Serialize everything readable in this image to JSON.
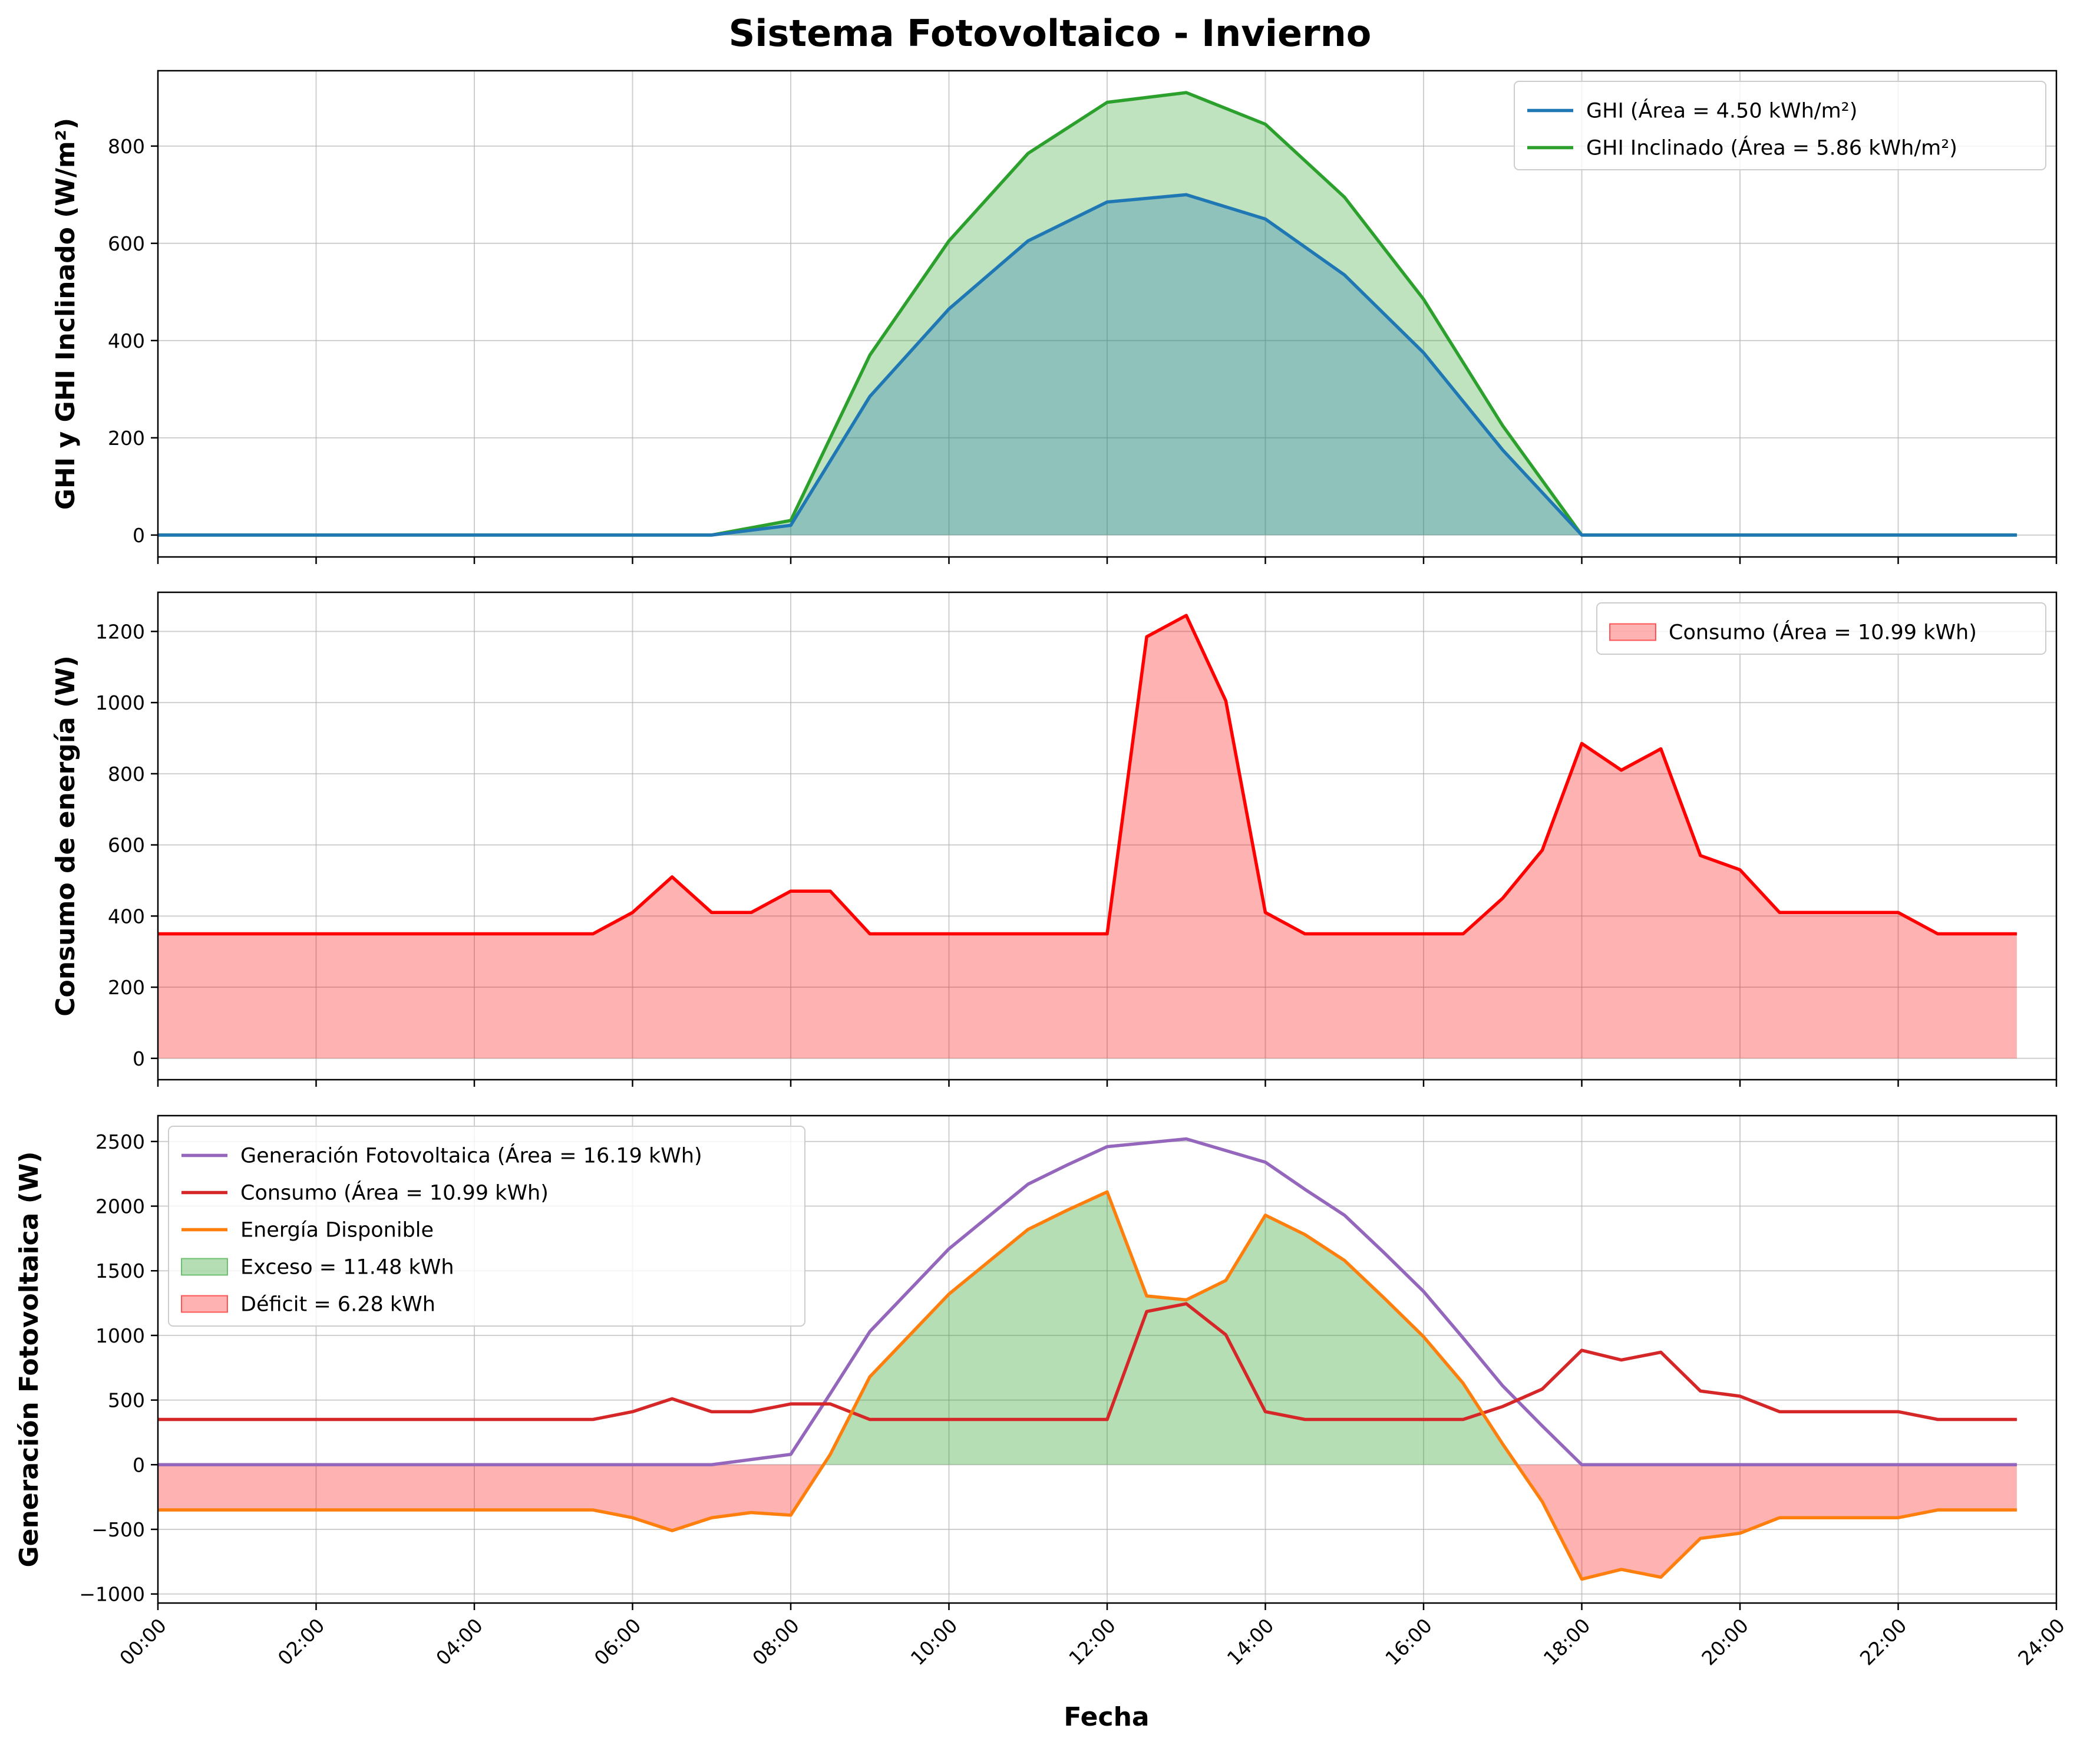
{
  "figure": {
    "title": "Sistema Fotovoltaico - Invierno",
    "xlabel": "Fecha",
    "xticks": [
      "00:00",
      "02:00",
      "04:00",
      "06:00",
      "08:00",
      "10:00",
      "12:00",
      "14:00",
      "16:00",
      "18:00",
      "20:00",
      "22:00",
      "24:00"
    ]
  },
  "chart_data": [
    {
      "type": "area",
      "ylabel": "GHI y GHI Inclinado (W/m²)",
      "xlim": [
        0,
        24
      ],
      "ylim": [
        -45,
        955
      ],
      "yticks": [
        0,
        200,
        400,
        600,
        800
      ],
      "grid": true,
      "legend_position": "top-right",
      "x": [
        0,
        1,
        2,
        3,
        4,
        5,
        6,
        7,
        8,
        9,
        10,
        11,
        12,
        13,
        14,
        15,
        16,
        17,
        18,
        19,
        20,
        21,
        22,
        23,
        23.5
      ],
      "series": [
        {
          "name": "GHI Inclinado (Área = 5.86 kWh/m²)",
          "color": "#2ca02c",
          "fill": "#2ca02c",
          "fill_opacity": 0.3,
          "values": [
            0,
            0,
            0,
            0,
            0,
            0,
            0,
            0,
            30,
            370,
            605,
            785,
            890,
            910,
            845,
            695,
            485,
            225,
            0,
            0,
            0,
            0,
            0,
            0,
            0
          ]
        },
        {
          "name": "GHI (Área = 4.50 kWh/m²)",
          "color": "#1f77b4",
          "fill": "#1f77b4",
          "fill_opacity": 0.3,
          "values": [
            0,
            0,
            0,
            0,
            0,
            0,
            0,
            0,
            20,
            285,
            465,
            605,
            685,
            700,
            650,
            535,
            375,
            175,
            0,
            0,
            0,
            0,
            0,
            0,
            0
          ]
        }
      ],
      "legend": [
        {
          "label": "GHI (Área = 4.50 kWh/m²)",
          "color": "#1f77b4",
          "kind": "line"
        },
        {
          "label": "GHI Inclinado (Área = 5.86 kWh/m²)",
          "color": "#2ca02c",
          "kind": "line"
        }
      ]
    },
    {
      "type": "area",
      "ylabel": "Consumo de energía (W)",
      "xlim": [
        0,
        24
      ],
      "ylim": [
        -60,
        1310
      ],
      "yticks": [
        0,
        200,
        400,
        600,
        800,
        1000,
        1200
      ],
      "grid": true,
      "legend_position": "top-right",
      "x": [
        0,
        0.5,
        1,
        1.5,
        2,
        2.5,
        3,
        3.5,
        4,
        4.5,
        5,
        5.5,
        6,
        6.5,
        7,
        7.5,
        8,
        8.5,
        9,
        9.5,
        10,
        10.5,
        11,
        11.5,
        12,
        12.5,
        13,
        13.5,
        14,
        14.5,
        15,
        15.5,
        16,
        16.5,
        17,
        17.5,
        18,
        18.5,
        19,
        19.5,
        20,
        20.5,
        21,
        21.5,
        22,
        22.5,
        23,
        23.5
      ],
      "series": [
        {
          "name": "Consumo (Área = 10.99 kWh)",
          "color": "#ff0000",
          "fill": "#ff0000",
          "fill_opacity": 0.3,
          "values": [
            350,
            350,
            350,
            350,
            350,
            350,
            350,
            350,
            350,
            350,
            350,
            350,
            410,
            510,
            410,
            410,
            470,
            470,
            350,
            350,
            350,
            350,
            350,
            350,
            350,
            1185,
            1245,
            1005,
            410,
            350,
            350,
            350,
            350,
            350,
            450,
            585,
            885,
            810,
            870,
            570,
            530,
            410,
            410,
            410,
            410,
            350,
            350,
            350
          ]
        }
      ],
      "legend": [
        {
          "label": "Consumo (Área = 10.99 kWh)",
          "color": "#ff0000",
          "kind": "patch"
        }
      ]
    },
    {
      "type": "line",
      "ylabel": "Generación Fotovoltaica (W)",
      "xlim": [
        0,
        24
      ],
      "ylim": [
        -1070,
        2700
      ],
      "yticks": [
        -1000,
        -500,
        0,
        500,
        1000,
        1500,
        2000,
        2500
      ],
      "grid": true,
      "legend_position": "top-left",
      "x": [
        0,
        0.5,
        1,
        1.5,
        2,
        2.5,
        3,
        3.5,
        4,
        4.5,
        5,
        5.5,
        6,
        6.5,
        7,
        7.5,
        8,
        8.5,
        9,
        9.5,
        10,
        10.5,
        11,
        11.5,
        12,
        12.5,
        13,
        13.5,
        14,
        14.5,
        15,
        15.5,
        16,
        16.5,
        17,
        17.5,
        18,
        18.5,
        19,
        19.5,
        20,
        20.5,
        21,
        21.5,
        22,
        22.5,
        23,
        23.5
      ],
      "series": [
        {
          "name": "Generación Fotovoltaica (Área = 16.19 kWh)",
          "color": "#9467bd",
          "values": [
            0,
            0,
            0,
            0,
            0,
            0,
            0,
            0,
            0,
            0,
            0,
            0,
            0,
            0,
            0,
            40,
            80,
            550,
            1030,
            1350,
            1670,
            1920,
            2170,
            2320,
            2460,
            2490,
            2520,
            2430,
            2340,
            2130,
            1930,
            1640,
            1340,
            980,
            610,
            300,
            0,
            0,
            0,
            0,
            0,
            0,
            0,
            0,
            0,
            0,
            0,
            0
          ]
        },
        {
          "name": "Consumo (Área = 10.99 kWh)",
          "color": "#d62728",
          "values": [
            350,
            350,
            350,
            350,
            350,
            350,
            350,
            350,
            350,
            350,
            350,
            350,
            410,
            510,
            410,
            410,
            470,
            470,
            350,
            350,
            350,
            350,
            350,
            350,
            350,
            1185,
            1245,
            1005,
            410,
            350,
            350,
            350,
            350,
            350,
            450,
            585,
            885,
            810,
            870,
            570,
            530,
            410,
            410,
            410,
            410,
            350,
            350,
            350
          ]
        },
        {
          "name": "Energía Disponible",
          "color": "#ff7f0e",
          "values": [
            -350,
            -350,
            -350,
            -350,
            -350,
            -350,
            -350,
            -350,
            -350,
            -350,
            -350,
            -350,
            -410,
            -510,
            -410,
            -370,
            -390,
            80,
            680,
            1000,
            1320,
            1570,
            1820,
            1970,
            2110,
            1305,
            1275,
            1425,
            1930,
            1780,
            1580,
            1290,
            990,
            630,
            160,
            -285,
            -885,
            -810,
            -870,
            -570,
            -530,
            -410,
            -410,
            -410,
            -410,
            -350,
            -350,
            -350
          ]
        }
      ],
      "fills": [
        {
          "name": "Exceso = 11.48 kWh",
          "color": "#2ca02c",
          "opacity": 0.35,
          "where": "positive"
        },
        {
          "name": "Déficit = 6.28 kWh",
          "color": "#ff0000",
          "opacity": 0.3,
          "where": "negative"
        }
      ],
      "legend": [
        {
          "label": "Generación Fotovoltaica (Área = 16.19 kWh)",
          "color": "#9467bd",
          "kind": "line"
        },
        {
          "label": "Consumo (Área = 10.99 kWh)",
          "color": "#d62728",
          "kind": "line"
        },
        {
          "label": "Energía Disponible",
          "color": "#ff7f0e",
          "kind": "line"
        },
        {
          "label": "Exceso = 11.48 kWh",
          "color": "#2ca02c",
          "kind": "patch",
          "opacity": 0.35
        },
        {
          "label": "Déficit = 6.28 kWh",
          "color": "#ff0000",
          "kind": "patch",
          "opacity": 0.3
        }
      ]
    }
  ]
}
